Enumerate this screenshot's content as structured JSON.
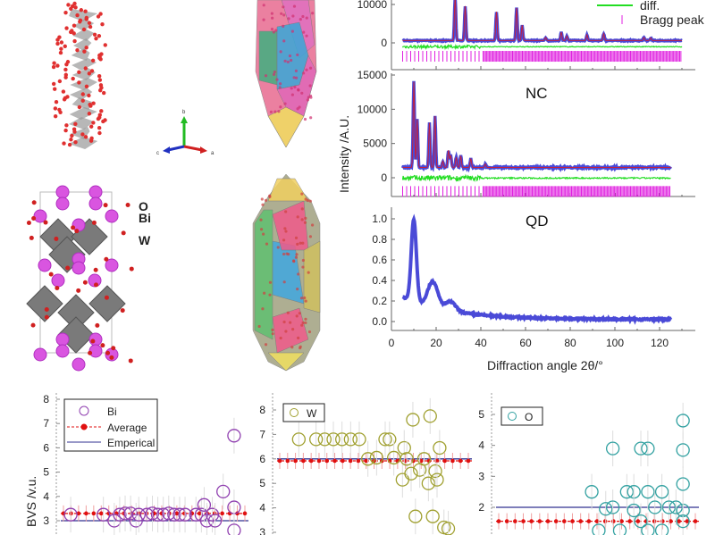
{
  "structure": {
    "atom_labels": [
      "O",
      "Bi",
      "W"
    ],
    "axis_labels": [
      "b",
      "c",
      "a"
    ]
  },
  "colors": {
    "observed": "#2a2ad0",
    "calc": "#c02040",
    "diff": "#22dd22",
    "bragg": "#e020e0",
    "bi": "#9040b0",
    "w": "#a0a030",
    "o": "#30a0a0",
    "average": "#e01010",
    "empirical": "#303090"
  },
  "chart_data": [
    {
      "type": "line",
      "panel": "bulk",
      "legend": [
        {
          "label": "diff.",
          "color": "#22dd22"
        },
        {
          "label": "Bragg peak",
          "color": "#e020e0"
        }
      ],
      "xlim": [
        0,
        125
      ],
      "ylim": [
        -3000,
        12000
      ],
      "yticks": [
        0,
        10000
      ],
      "ytick_labels": [
        "0",
        "10000"
      ],
      "background": 600,
      "peaks": [
        [
          28.5,
          11500
        ],
        [
          33,
          9000
        ],
        [
          47,
          7500
        ],
        [
          56,
          8500
        ],
        [
          58.5,
          4000
        ],
        [
          69,
          800
        ],
        [
          76,
          2200
        ],
        [
          78.5,
          1200
        ],
        [
          87.5,
          1500
        ],
        [
          95,
          1800
        ],
        [
          113,
          800
        ],
        [
          116,
          700
        ]
      ],
      "x_range": [
        5,
        130
      ]
    },
    {
      "type": "line",
      "panel": "NC",
      "title": "NC",
      "xlim": [
        0,
        125
      ],
      "ylim": [
        -3000,
        15000
      ],
      "yticks": [
        0,
        5000,
        10000,
        15000
      ],
      "ytick_labels": [
        "0",
        "5000",
        "10000",
        "15000"
      ],
      "background": 1500,
      "peaks": [
        [
          10,
          12500
        ],
        [
          11.5,
          7000
        ],
        [
          17,
          6500
        ],
        [
          19.5,
          7500
        ],
        [
          23,
          900
        ],
        [
          25.5,
          2500
        ],
        [
          26.5,
          1800
        ],
        [
          29,
          1500
        ],
        [
          31,
          1700
        ],
        [
          35.5,
          1300
        ],
        [
          42,
          500
        ]
      ],
      "x_range": [
        5,
        125
      ]
    },
    {
      "type": "line",
      "panel": "QD",
      "title": "QD",
      "xlim": [
        0,
        125
      ],
      "ylim": [
        -0.1,
        1.1
      ],
      "yticks": [
        0.0,
        0.2,
        0.4,
        0.6,
        0.8,
        1.0
      ],
      "ytick_labels": [
        "0.0",
        "0.2",
        "0.4",
        "0.6",
        "0.8",
        "1.0"
      ],
      "xticks": [
        0,
        20,
        40,
        60,
        80,
        100,
        120
      ],
      "xtick_labels": [
        "0",
        "20",
        "40",
        "60",
        "80",
        "100",
        "120"
      ],
      "xlabel": "Diffraction angle 2θ/°",
      "ylabel": "Intensity /A.U.",
      "peaks": [
        [
          10,
          0.8
        ],
        [
          18.5,
          0.25
        ],
        [
          26.5,
          0.09
        ]
      ],
      "x_range": [
        5,
        125
      ]
    },
    {
      "type": "scatter",
      "panel": "Bi",
      "ylabel": "BVS /v.u.",
      "ylim": [
        2.5,
        8
      ],
      "yticks": [
        3,
        4,
        5,
        6,
        7,
        8
      ],
      "ytick_labels": [
        "3",
        "4",
        "5",
        "6",
        "7",
        "8"
      ],
      "legend": [
        {
          "label": "Bi"
        },
        {
          "label": "Average"
        },
        {
          "label": "Emperical"
        }
      ],
      "average": 3.3,
      "empirical": 3.0,
      "points": [
        [
          3,
          3.25
        ],
        [
          9,
          3.25
        ],
        [
          11,
          3.0
        ],
        [
          12,
          3.25
        ],
        [
          13,
          3.3
        ],
        [
          14,
          3.3
        ],
        [
          15,
          3.0
        ],
        [
          15.5,
          3.25
        ],
        [
          17,
          3.25
        ],
        [
          18,
          3.3
        ],
        [
          19,
          3.25
        ],
        [
          20,
          3.25
        ],
        [
          21,
          3.3
        ],
        [
          22,
          3.25
        ],
        [
          23,
          3.25
        ],
        [
          24,
          3.25
        ],
        [
          26,
          3.25
        ],
        [
          27,
          3.25
        ],
        [
          27.5,
          3.65
        ],
        [
          28,
          3.0
        ],
        [
          29,
          3.25
        ],
        [
          29.5,
          3.0
        ],
        [
          31,
          4.2
        ],
        [
          33,
          6.5
        ],
        [
          33,
          3.55
        ],
        [
          33,
          2.6
        ]
      ]
    },
    {
      "type": "scatter",
      "panel": "W",
      "ylim": [
        2.8,
        8.5
      ],
      "yticks": [
        3,
        4,
        5,
        6,
        7,
        8
      ],
      "ytick_labels": [
        "3",
        "4",
        "5",
        "6",
        "7",
        "8"
      ],
      "legend": [
        {
          "label": "W"
        }
      ],
      "average": 5.92,
      "empirical": 6.0,
      "points": [
        [
          3,
          6.8
        ],
        [
          5,
          6.8
        ],
        [
          6,
          6.8
        ],
        [
          7,
          6.8
        ],
        [
          8,
          6.8
        ],
        [
          9,
          6.8
        ],
        [
          10,
          6.8
        ],
        [
          11,
          6.0
        ],
        [
          12,
          6.05
        ],
        [
          13,
          6.8
        ],
        [
          13.5,
          6.8
        ],
        [
          14,
          6.05
        ],
        [
          15,
          5.15
        ],
        [
          15.2,
          6.45
        ],
        [
          15.5,
          6.0
        ],
        [
          16,
          5.4
        ],
        [
          16.2,
          7.6
        ],
        [
          16.5,
          3.65
        ],
        [
          17,
          5.55
        ],
        [
          17.5,
          6.0
        ],
        [
          18,
          5.0
        ],
        [
          18.2,
          7.75
        ],
        [
          18.5,
          3.65
        ],
        [
          18.8,
          5.5
        ],
        [
          19,
          5.15
        ],
        [
          19.3,
          6.45
        ],
        [
          19.8,
          3.2
        ],
        [
          20.3,
          3.15
        ]
      ]
    },
    {
      "type": "scatter",
      "panel": "O",
      "ylim": [
        1,
        5.3
      ],
      "yticks": [
        2,
        3,
        4,
        5
      ],
      "ytick_labels": [
        "2",
        "3",
        "4",
        "5"
      ],
      "legend": [
        {
          "label": "O"
        }
      ],
      "average": 1.55,
      "empirical": 2.0,
      "points": [
        [
          14,
          2.5
        ],
        [
          15,
          1.25
        ],
        [
          16,
          1.95
        ],
        [
          17,
          3.9
        ],
        [
          17,
          2.0
        ],
        [
          18,
          1.25
        ],
        [
          19,
          2.5
        ],
        [
          20,
          2.5
        ],
        [
          20,
          1.9
        ],
        [
          21,
          3.9
        ],
        [
          21,
          1.55
        ],
        [
          22,
          2.5
        ],
        [
          22,
          3.9
        ],
        [
          22,
          1.25
        ],
        [
          23,
          2.0
        ],
        [
          24,
          2.5
        ],
        [
          24,
          1.25
        ],
        [
          25,
          2.0
        ],
        [
          26,
          2.0
        ],
        [
          27,
          2.75
        ],
        [
          27,
          4.8
        ],
        [
          27,
          3.85
        ],
        [
          27,
          1.9
        ],
        [
          27,
          1.55
        ]
      ]
    }
  ]
}
